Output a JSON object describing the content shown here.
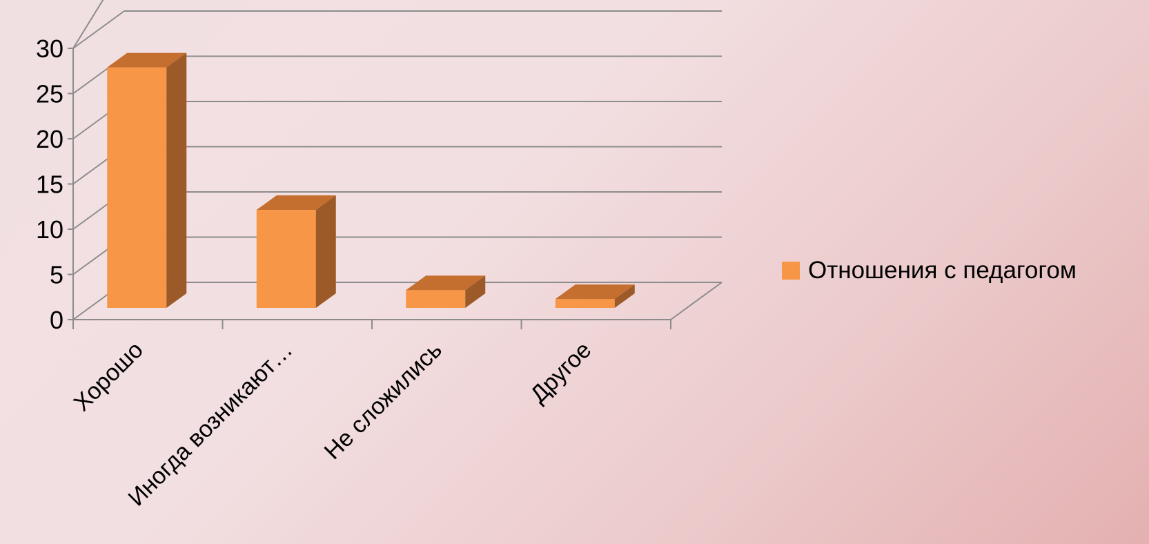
{
  "chart_data": {
    "type": "bar",
    "categories": [
      "Хорошо",
      "Иногда возникают…",
      "Не сложились",
      "Другое"
    ],
    "series": [
      {
        "name": "Отношения с педагогом",
        "values": [
          27,
          11,
          2,
          1
        ]
      }
    ],
    "ylim": [
      0,
      30
    ],
    "yticks": [
      0,
      5,
      10,
      15,
      20,
      25,
      30
    ],
    "grid": true,
    "legend_position": "right",
    "colors": {
      "front": "#F79646",
      "top": "#C46F30",
      "side": "#9C5A28",
      "grid": "#8c8c8c"
    }
  }
}
